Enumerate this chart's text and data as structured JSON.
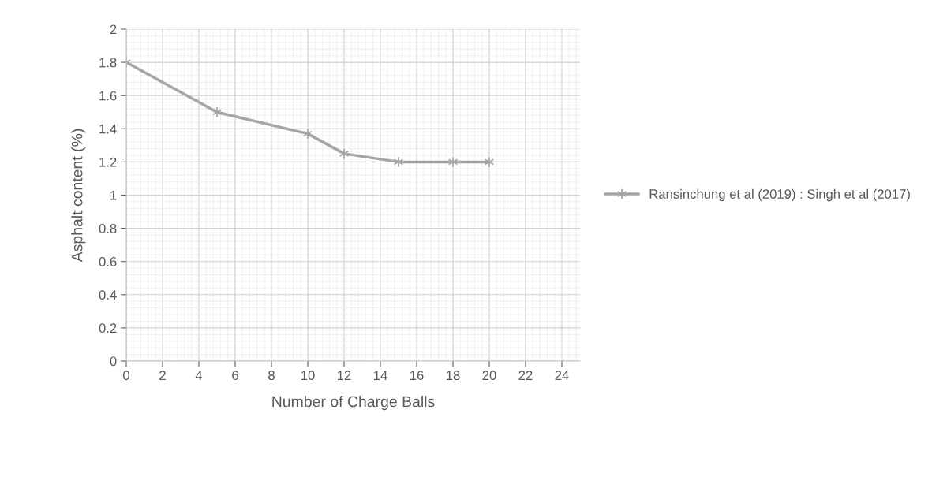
{
  "chart_data": {
    "type": "line",
    "xlabel": "Number of Charge Balls",
    "ylabel": "Asphalt content (%)",
    "x": [
      0,
      5,
      10,
      12,
      15,
      18,
      20
    ],
    "series": [
      {
        "name": "Ransinchung et al (2019) : Singh et al (2017)",
        "color": "#a5a5a5",
        "values": [
          1.8,
          1.5,
          1.37,
          1.25,
          1.2,
          1.2,
          1.2
        ]
      }
    ],
    "xlim": [
      0,
      25
    ],
    "xticks": [
      0,
      2,
      4,
      6,
      8,
      10,
      12,
      14,
      16,
      18,
      20,
      22,
      24
    ],
    "ylim": [
      0,
      2
    ],
    "yticks": [
      0,
      {
        "value": 0.2,
        "label": "0.2"
      },
      {
        "value": 0.4,
        "label": "0.4"
      },
      {
        "value": 0.6,
        "label": "0.6"
      },
      {
        "value": 0.8,
        "label": "0.8"
      },
      1,
      {
        "value": 1.2,
        "label": "1.2"
      },
      {
        "value": 1.4,
        "label": "1.4"
      },
      {
        "value": 1.6,
        "label": "1.6"
      },
      {
        "value": 1.8,
        "label": "1.8"
      },
      2
    ],
    "grid": true,
    "legend": "right",
    "marker": "cross",
    "line_style": "solid"
  }
}
